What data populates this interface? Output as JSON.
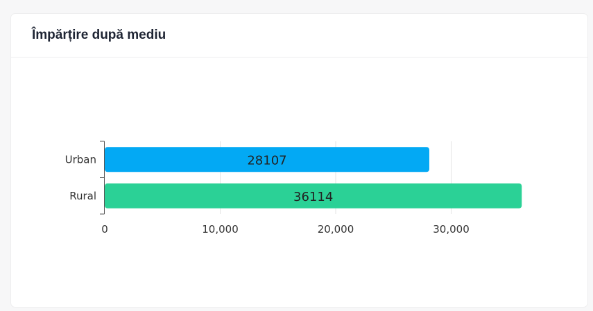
{
  "card": {
    "title": "Împărțire după mediu"
  },
  "chart_data": {
    "type": "bar",
    "orientation": "horizontal",
    "title": "",
    "xlabel": "",
    "ylabel": "",
    "categories": [
      "Urban",
      "Rural"
    ],
    "values": [
      28107,
      36114
    ],
    "colors": [
      "#03a9f4",
      "#2bd196"
    ],
    "xlim": [
      0,
      40000
    ],
    "xticks": [
      0,
      10000,
      20000,
      30000
    ],
    "xtick_labels": [
      "0",
      "10,000",
      "20,000",
      "30,000"
    ],
    "grid": true
  }
}
